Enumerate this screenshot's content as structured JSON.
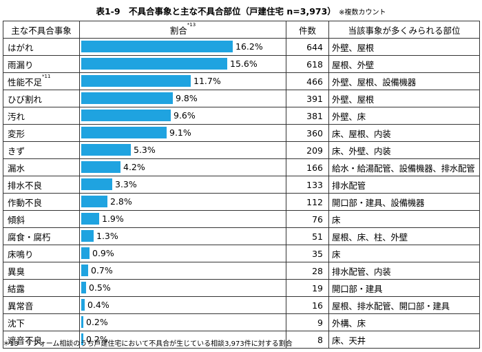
{
  "title": "表1-9　不具合事象と主な不具合部位（戸建住宅 n=3,973）",
  "title_note": "※複数カウント",
  "headers": {
    "name": "主な不具合事象",
    "ratio": "割合",
    "ratio_sup": "*13",
    "count": "件数",
    "location": "当該事象が多くみられる部位"
  },
  "rows": [
    {
      "name": "はがれ",
      "sup": "",
      "pct": 16.2,
      "pct_label": "16.2%",
      "count": "644",
      "location": "外壁、屋根"
    },
    {
      "name": "雨漏り",
      "sup": "",
      "pct": 15.6,
      "pct_label": "15.6%",
      "count": "618",
      "location": "屋根、外壁"
    },
    {
      "name": "性能不足",
      "sup": "*11",
      "pct": 11.7,
      "pct_label": "11.7%",
      "count": "466",
      "location": "外壁、屋根、設備機器"
    },
    {
      "name": "ひび割れ",
      "sup": "",
      "pct": 9.8,
      "pct_label": "9.8%",
      "count": "391",
      "location": "外壁、屋根"
    },
    {
      "name": "汚れ",
      "sup": "",
      "pct": 9.6,
      "pct_label": "9.6%",
      "count": "381",
      "location": "外壁、床"
    },
    {
      "name": "変形",
      "sup": "",
      "pct": 9.1,
      "pct_label": "9.1%",
      "count": "360",
      "location": "床、屋根、内装"
    },
    {
      "name": "きず",
      "sup": "",
      "pct": 5.3,
      "pct_label": "5.3%",
      "count": "209",
      "location": "床、外壁、内装"
    },
    {
      "name": "漏水",
      "sup": "",
      "pct": 4.2,
      "pct_label": "4.2%",
      "count": "166",
      "location": "給水・給湯配管、設備機器、排水配管"
    },
    {
      "name": "排水不良",
      "sup": "",
      "pct": 3.3,
      "pct_label": "3.3%",
      "count": "133",
      "location": "排水配管"
    },
    {
      "name": "作動不良",
      "sup": "",
      "pct": 2.8,
      "pct_label": "2.8%",
      "count": "112",
      "location": "開口部・建具、設備機器"
    },
    {
      "name": "傾斜",
      "sup": "",
      "pct": 1.9,
      "pct_label": "1.9%",
      "count": "76",
      "location": "床"
    },
    {
      "name": "腐食・腐朽",
      "sup": "",
      "pct": 1.3,
      "pct_label": "1.3%",
      "count": "51",
      "location": "屋根、床、柱、外壁"
    },
    {
      "name": "床鳴り",
      "sup": "",
      "pct": 0.9,
      "pct_label": "0.9%",
      "count": "35",
      "location": "床"
    },
    {
      "name": "異臭",
      "sup": "",
      "pct": 0.7,
      "pct_label": "0.7%",
      "count": "28",
      "location": "排水配管、内装"
    },
    {
      "name": "結露",
      "sup": "",
      "pct": 0.5,
      "pct_label": "0.5%",
      "count": "19",
      "location": "開口部・建具"
    },
    {
      "name": "異常音",
      "sup": "",
      "pct": 0.4,
      "pct_label": "0.4%",
      "count": "16",
      "location": "屋根、排水配管、開口部・建具"
    },
    {
      "name": "沈下",
      "sup": "",
      "pct": 0.2,
      "pct_label": "0.2%",
      "count": "9",
      "location": "外構、床"
    },
    {
      "name": "遮音不良",
      "sup": "",
      "pct": 0.2,
      "pct_label": "0.2%",
      "count": "8",
      "location": "床、天井"
    }
  ],
  "footnote": "＊13　リフォーム相談のうち戸建住宅において不具合が生じている相談3,973件に対する割合",
  "colors": {
    "bar": "#1fa3e0",
    "border": "#333333"
  },
  "chart_data": {
    "type": "bar",
    "title": "表1-9　不具合事象と主な不具合部位（戸建住宅 n=3,973）",
    "categories": [
      "はがれ",
      "雨漏り",
      "性能不足",
      "ひび割れ",
      "汚れ",
      "変形",
      "きず",
      "漏水",
      "排水不良",
      "作動不良",
      "傾斜",
      "腐食・腐朽",
      "床鳴り",
      "異臭",
      "結露",
      "異常音",
      "沈下",
      "遮音不良"
    ],
    "series": [
      {
        "name": "割合 (%)",
        "values": [
          16.2,
          15.6,
          11.7,
          9.8,
          9.6,
          9.1,
          5.3,
          4.2,
          3.3,
          2.8,
          1.9,
          1.3,
          0.9,
          0.7,
          0.5,
          0.4,
          0.2,
          0.2
        ]
      },
      {
        "name": "件数",
        "values": [
          644,
          618,
          466,
          391,
          381,
          360,
          209,
          166,
          133,
          112,
          76,
          51,
          35,
          28,
          19,
          16,
          9,
          8
        ]
      }
    ],
    "orientation": "horizontal",
    "xlabel": "割合",
    "ylabel": "主な不具合事象"
  }
}
